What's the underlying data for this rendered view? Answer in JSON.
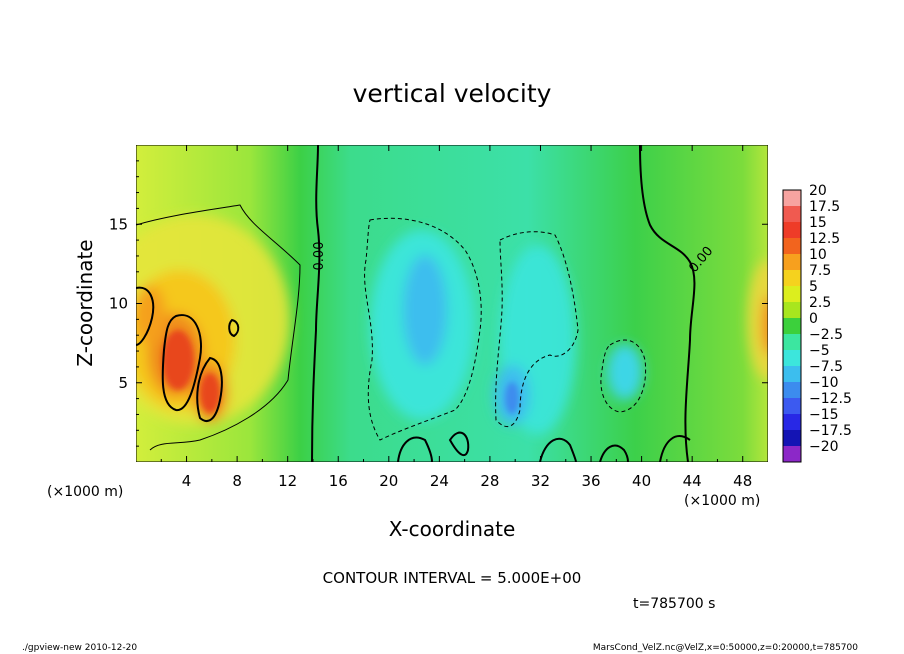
{
  "chart_data": {
    "type": "heatmap",
    "title": "vertical velocity",
    "xlabel": "X-coordinate",
    "ylabel": "Z-coordinate",
    "x_unit_left": "(×1000 m)",
    "x_unit_right": "(×1000 m)",
    "xlim": [
      0,
      50
    ],
    "ylim": [
      0,
      20
    ],
    "x_ticks": [
      4,
      8,
      12,
      16,
      20,
      24,
      28,
      32,
      36,
      40,
      44,
      48
    ],
    "y_ticks": [
      5,
      10,
      15
    ],
    "contour_interval_text": "CONTOUR INTERVAL = 5.000E+00",
    "time_text": "t=785700 s",
    "contour_labels": [
      "0.00",
      "0.00"
    ],
    "colorbar": {
      "labels": [
        "20",
        "17.5",
        "15",
        "12.5",
        "10",
        "7.5",
        "5",
        "2.5",
        "0",
        "−2.5",
        "−5",
        "−7.5",
        "−10",
        "−12.5",
        "−15",
        "−17.5",
        "−20"
      ],
      "colors": [
        "#f7a3a0",
        "#f05a50",
        "#ee3c28",
        "#f2641e",
        "#f7a01e",
        "#f5d21e",
        "#dcee1e",
        "#a8e61e",
        "#3cd03c",
        "#3ce6a0",
        "#3ce6dc",
        "#3cbeee",
        "#3c8cee",
        "#3c5af0",
        "#2828e6",
        "#1414b4",
        "#8c28c8"
      ]
    }
  },
  "footer": {
    "left": "./gpview-new   2010-12-20",
    "right": "MarsCond_VelZ.nc@VelZ,x=0:50000,z=0:20000,t=785700"
  }
}
